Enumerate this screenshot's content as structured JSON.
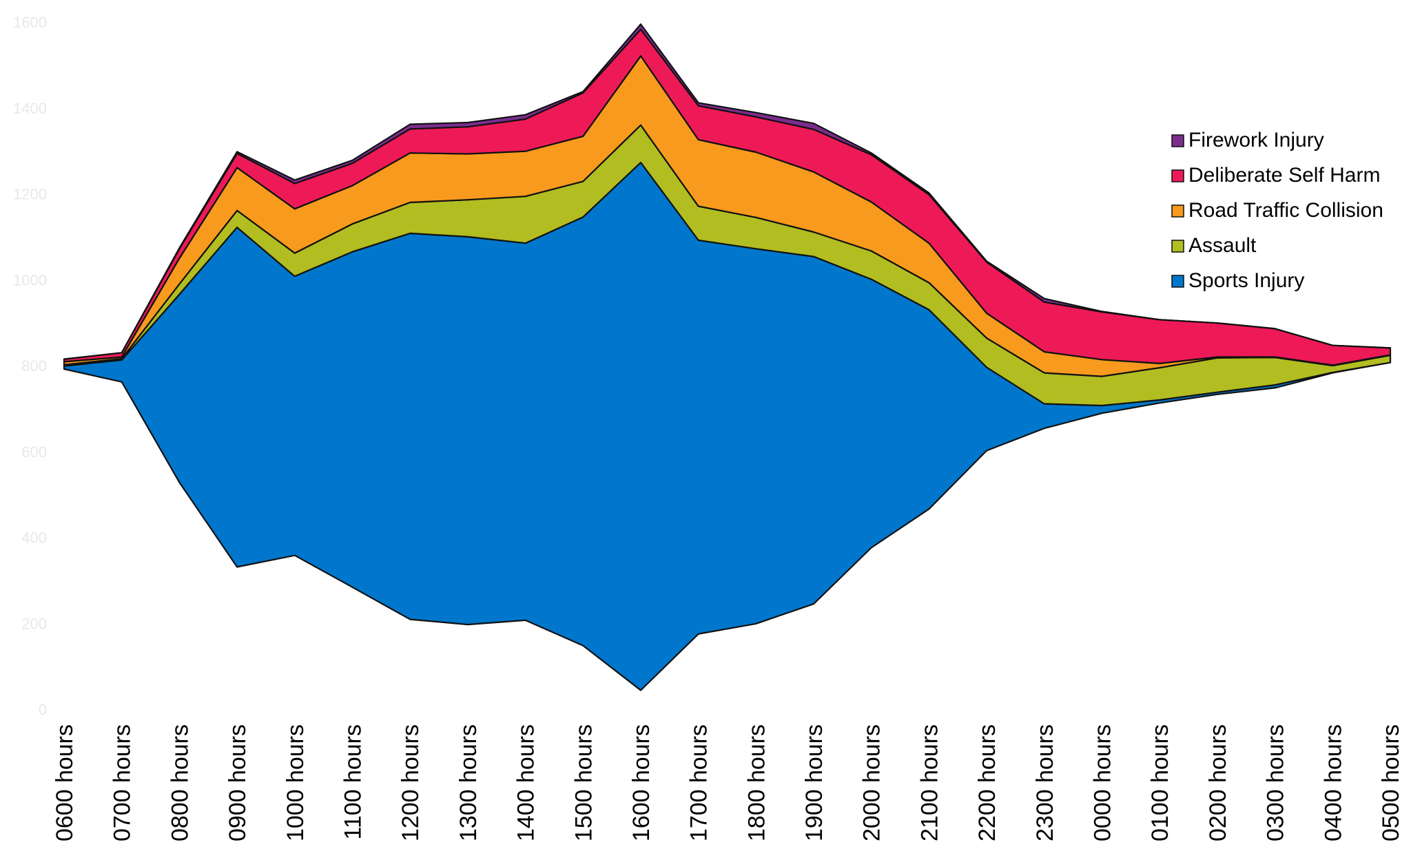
{
  "chart_data": {
    "type": "area",
    "layout": "streamgraph",
    "categories": [
      "0600 hours",
      "0700 hours",
      "0800 hours",
      "0900 hours",
      "1000 hours",
      "1100 hours",
      "1200 hours",
      "1300 hours",
      "1400 hours",
      "1500 hours",
      "1600 hours",
      "1700 hours",
      "1800 hours",
      "1900 hours",
      "2000 hours",
      "2100 hours",
      "2200 hours",
      "2300 hours",
      "0000 hours",
      "0100 hours",
      "0200 hours",
      "0300 hours",
      "0400 hours",
      "0500 hours"
    ],
    "baseline": [
      792,
      762,
      528,
      331,
      358,
      284,
      209,
      197,
      207,
      148,
      44,
      175,
      199,
      245,
      376,
      466,
      602,
      654,
      689,
      713,
      733,
      748,
      783,
      807
    ],
    "series": [
      {
        "name": "Sports Injury",
        "color": "#0077cc",
        "values": [
          7,
          51,
          438,
          791,
          650,
          781,
          899,
          903,
          878,
          998,
          1229,
          917,
          873,
          809,
          625,
          464,
          194,
          57,
          18,
          7,
          5,
          7,
          1,
          0
        ]
      },
      {
        "name": "Assault",
        "color": "#b1bd21",
        "values": [
          3,
          3,
          24,
          39,
          54,
          65,
          72,
          86,
          109,
          83,
          87,
          79,
          73,
          57,
          66,
          63,
          68,
          72,
          68,
          75,
          80,
          64,
          16,
          17
        ]
      },
      {
        "name": "Road Traffic Collision",
        "color": "#f79a1d",
        "values": [
          7,
          4,
          60,
          100,
          103,
          89,
          115,
          107,
          105,
          105,
          161,
          155,
          152,
          140,
          114,
          92,
          58,
          49,
          39,
          10,
          2,
          1,
          1,
          1
        ]
      },
      {
        "name": "Deliberate Self Harm",
        "color": "#ee1a57",
        "values": [
          6,
          10,
          22,
          33,
          59,
          52,
          56,
          63,
          75,
          101,
          62,
          79,
          82,
          99,
          110,
          113,
          119,
          116,
          111,
          102,
          79,
          66,
          46,
          16
        ]
      },
      {
        "name": "Firework Injury",
        "color": "#7b2d8e",
        "values": [
          0,
          0,
          2,
          4,
          8,
          7,
          11,
          10,
          10,
          3,
          12,
          7,
          10,
          14,
          4,
          4,
          2,
          8,
          1,
          0,
          0,
          0,
          0,
          0
        ]
      }
    ],
    "yticks": [
      "0",
      "200",
      "400",
      "600",
      "800",
      "1000",
      "1200",
      "1400",
      "1600"
    ],
    "ylim": [
      0,
      1600
    ],
    "legend_position": "right",
    "grid": false
  }
}
